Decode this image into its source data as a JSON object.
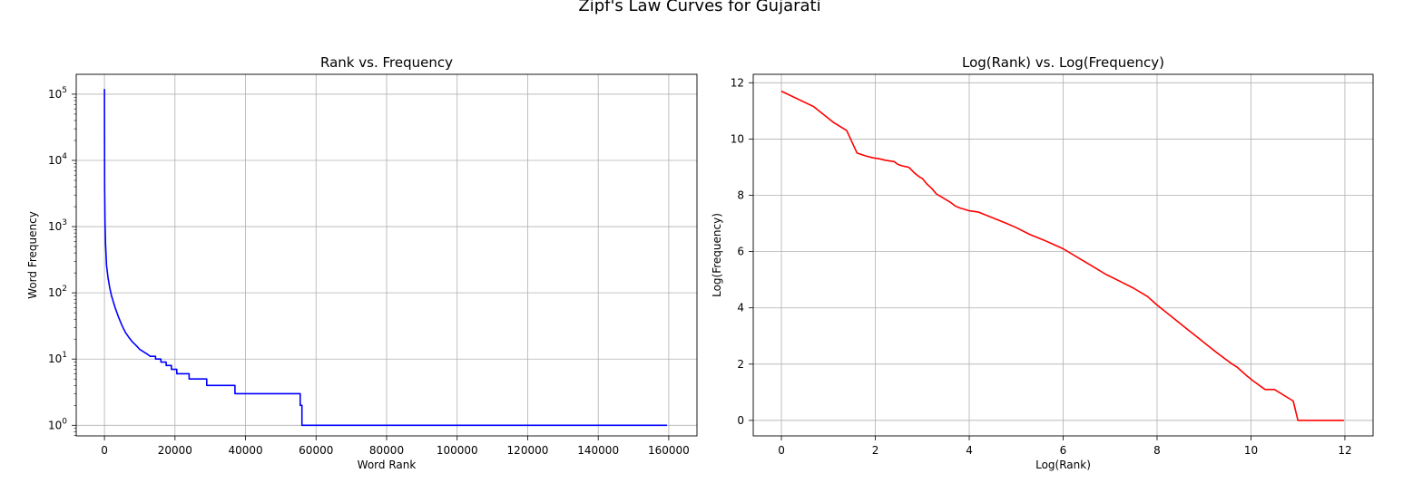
{
  "figure": {
    "suptitle": "Zipf's Law Curves for Gujarati"
  },
  "chart_data": [
    {
      "type": "line",
      "title": "Rank vs. Frequency",
      "xlabel": "Word Rank",
      "ylabel": "Word Frequency",
      "yscale": "log",
      "xlim": [
        -8000,
        168000
      ],
      "ylim_log10": [
        -0.16,
        5.3
      ],
      "grid": true,
      "color": "#0000ff",
      "xticks": [
        0,
        20000,
        40000,
        60000,
        80000,
        100000,
        120000,
        140000,
        160000
      ],
      "xtick_labels": [
        "0",
        "20000",
        "40000",
        "60000",
        "80000",
        "100000",
        "120000",
        "140000",
        "160000"
      ],
      "yticks_exp": [
        0,
        1,
        2,
        3,
        4,
        5
      ],
      "ytick_base": "10",
      "series": [
        {
          "x": [
            1,
            20,
            60,
            150,
            300,
            600,
            1000,
            1500,
            2000,
            3000,
            4000,
            5000,
            6000,
            7000,
            8000,
            9000,
            10000,
            11000,
            12000,
            13000,
            14500,
            16000,
            17500,
            19000,
            20500,
            24000,
            29000,
            37000,
            55500,
            56000,
            159500
          ],
          "y": [
            120000,
            20000,
            4000,
            1200,
            550,
            260,
            170,
            120,
            90,
            60,
            43,
            32,
            25,
            21,
            18,
            16,
            14,
            13,
            12,
            11,
            10,
            9,
            8,
            7,
            6,
            5,
            4,
            3,
            2,
            1,
            1
          ]
        }
      ]
    },
    {
      "type": "line",
      "title": "Log(Rank) vs. Log(Frequency)",
      "xlabel": "Log(Rank)",
      "ylabel": "Log(Frequency)",
      "xlim": [
        -0.6,
        12.6
      ],
      "ylim": [
        -0.55,
        12.3
      ],
      "grid": true,
      "color": "#ff0000",
      "xticks": [
        0,
        2,
        4,
        6,
        8,
        10,
        12
      ],
      "xtick_labels": [
        "0",
        "2",
        "4",
        "6",
        "8",
        "10",
        "12"
      ],
      "yticks": [
        0,
        2,
        4,
        6,
        8,
        10,
        12
      ],
      "ytick_labels": [
        "0",
        "2",
        "4",
        "6",
        "8",
        "10",
        "12"
      ],
      "series": [
        {
          "x": [
            0,
            0.69,
            1.1,
            1.39,
            1.61,
            1.79,
            1.95,
            2.08,
            2.2,
            2.3,
            2.4,
            2.48,
            2.56,
            2.64,
            2.71,
            2.77,
            2.83,
            2.89,
            2.94,
            3.0,
            3.1,
            3.2,
            3.3,
            3.4,
            3.5,
            3.6,
            3.7,
            3.8,
            3.9,
            4.0,
            4.2,
            4.5,
            4.8,
            5.0,
            5.3,
            5.6,
            5.8,
            6.0,
            6.3,
            6.6,
            6.9,
            7.2,
            7.5,
            7.8,
            8.0,
            8.3,
            8.6,
            8.9,
            9.2,
            9.4,
            9.6,
            9.7,
            9.8,
            9.9,
            10.05,
            10.3,
            10.5,
            10.9,
            11.0,
            11.98
          ],
          "y": [
            11.7,
            11.15,
            10.6,
            10.3,
            9.5,
            9.4,
            9.33,
            9.3,
            9.25,
            9.22,
            9.2,
            9.1,
            9.05,
            9.02,
            9.0,
            8.9,
            8.8,
            8.72,
            8.65,
            8.6,
            8.4,
            8.25,
            8.05,
            7.95,
            7.85,
            7.75,
            7.62,
            7.55,
            7.5,
            7.45,
            7.4,
            7.2,
            7.0,
            6.85,
            6.6,
            6.4,
            6.25,
            6.1,
            5.8,
            5.5,
            5.2,
            4.95,
            4.7,
            4.4,
            4.1,
            3.7,
            3.3,
            2.9,
            2.5,
            2.25,
            2.0,
            1.9,
            1.75,
            1.6,
            1.4,
            1.1,
            1.1,
            0.69,
            0,
            0
          ]
        }
      ]
    }
  ]
}
